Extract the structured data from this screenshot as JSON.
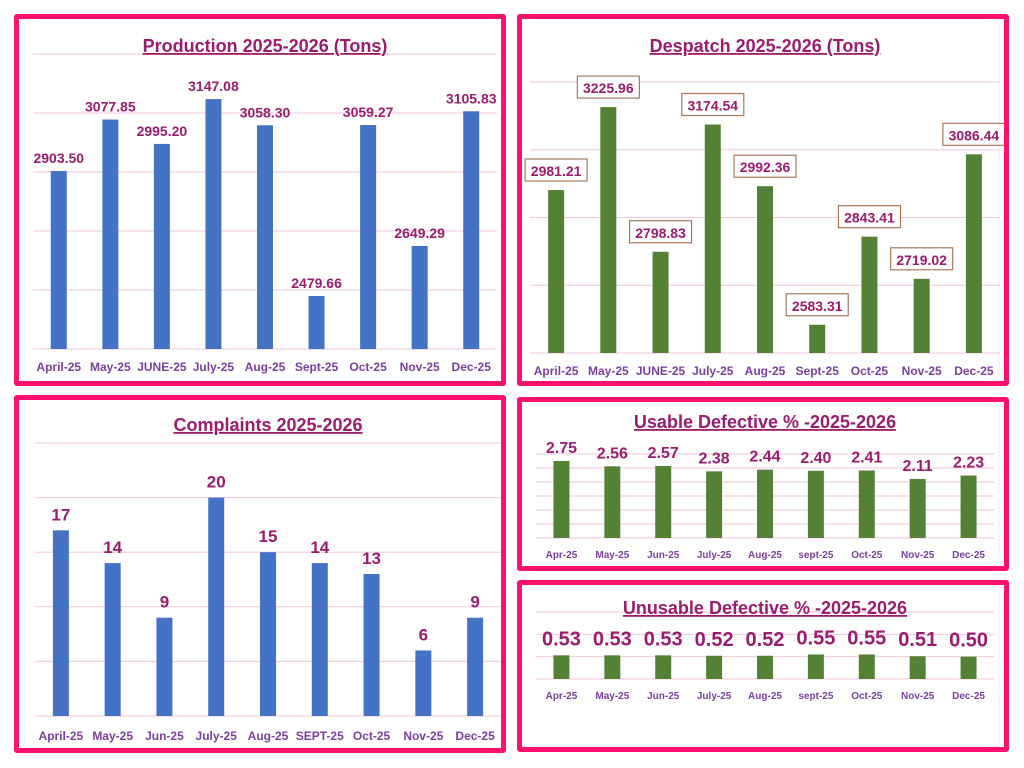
{
  "colors": {
    "panel_border": "#ff0f6e",
    "title": "#9b1b6e",
    "value_label": "#9b1b6e",
    "category_label": "#7b3f9e",
    "blue_bar": "#4472c4",
    "green_bar": "#548235",
    "label_box_border": "#a9785a",
    "gridline": "#f2c6dc"
  },
  "chart_data": [
    {
      "id": "production",
      "type": "bar",
      "title": "Production 2025-2026 (Tons)",
      "xlabel": "",
      "ylabel": "",
      "categories": [
        "April-25",
        "May-25",
        "JUNE-25",
        "July-25",
        "Aug-25",
        "Sept-25",
        "Oct-25",
        "Nov-25",
        "Dec-25"
      ],
      "values": [
        2903.5,
        3077.85,
        2995.2,
        3147.08,
        3058.3,
        2479.66,
        3059.27,
        2649.29,
        3105.83
      ],
      "value_labels": [
        "2903.50",
        "3077.85",
        "2995.20",
        "3147.08",
        "3058.30",
        "2479.66",
        "3059.27",
        "2649.29",
        "3105.83"
      ],
      "ylim": [
        2300,
        3300
      ],
      "ystep": 200,
      "grid": true,
      "legend": "none",
      "bar_color": "#4472c4",
      "boxed_labels": false
    },
    {
      "id": "despatch",
      "type": "bar",
      "title": "Despatch 2025-2026 (Tons)",
      "xlabel": "",
      "ylabel": "",
      "categories": [
        "April-25",
        "May-25",
        "JUNE-25",
        "July-25",
        "Aug-25",
        "Sept-25",
        "Oct-25",
        "Nov-25",
        "Dec-25"
      ],
      "values": [
        2981.21,
        3225.96,
        2798.83,
        3174.54,
        2992.36,
        2583.31,
        2843.41,
        2719.02,
        3086.44
      ],
      "value_labels": [
        "2981.21",
        "3225.96",
        "2798.83",
        "3174.54",
        "2992.36",
        "2583.31",
        "2843.41",
        "2719.02",
        "3086.44"
      ],
      "ylim": [
        2500,
        3300
      ],
      "ystep": 200,
      "grid": true,
      "legend": "none",
      "bar_color": "#548235",
      "boxed_labels": true
    },
    {
      "id": "complaints",
      "type": "bar",
      "title": "Complaints 2025-2026",
      "xlabel": "",
      "ylabel": "",
      "categories": [
        "April-25",
        "May-25",
        "Jun-25",
        "July-25",
        "Aug-25",
        "SEPT-25",
        "Oct-25",
        "Nov-25",
        "Dec-25"
      ],
      "values": [
        17,
        14,
        9,
        20,
        15,
        14,
        13,
        6,
        9
      ],
      "value_labels": [
        "17",
        "14",
        "9",
        "20",
        "15",
        "14",
        "13",
        "6",
        "9"
      ],
      "ylim": [
        0,
        25
      ],
      "ystep": 5,
      "grid": true,
      "legend": "none",
      "bar_color": "#4472c4",
      "boxed_labels": false
    },
    {
      "id": "usable-defective",
      "type": "bar",
      "title": "Usable Defective % -2025-2026",
      "xlabel": "",
      "ylabel": "",
      "categories": [
        "Apr-25",
        "May-25",
        "Jun-25",
        "July-25",
        "Aug-25",
        "sept-25",
        "Oct-25",
        "Nov-25",
        "Dec-25"
      ],
      "values": [
        2.75,
        2.56,
        2.57,
        2.38,
        2.44,
        2.4,
        2.41,
        2.11,
        2.23
      ],
      "value_labels": [
        "2.75",
        "2.56",
        "2.57",
        "2.38",
        "2.44",
        "2.40",
        "2.41",
        "2.11",
        "2.23"
      ],
      "ylim": [
        0,
        3
      ],
      "ystep": 0.5,
      "grid": true,
      "legend": "none",
      "bar_color": "#548235",
      "boxed_labels": false
    },
    {
      "id": "unusable-defective",
      "type": "bar",
      "title": "Unusable Defective % -2025-2026",
      "xlabel": "",
      "ylabel": "",
      "categories": [
        "Apr-25",
        "May-25",
        "Jun-25",
        "July-25",
        "Aug-25",
        "sept-25",
        "Oct-25",
        "Nov-25",
        "Dec-25"
      ],
      "values": [
        0.53,
        0.53,
        0.53,
        0.52,
        0.52,
        0.55,
        0.55,
        0.51,
        0.5
      ],
      "value_labels": [
        "0.53",
        "0.53",
        "0.53",
        "0.52",
        "0.52",
        "0.55",
        "0.55",
        "0.51",
        "0.50"
      ],
      "ylim": [
        0,
        1.5
      ],
      "ystep": 0.5,
      "grid": true,
      "legend": "none",
      "bar_color": "#548235",
      "boxed_labels": false
    }
  ]
}
